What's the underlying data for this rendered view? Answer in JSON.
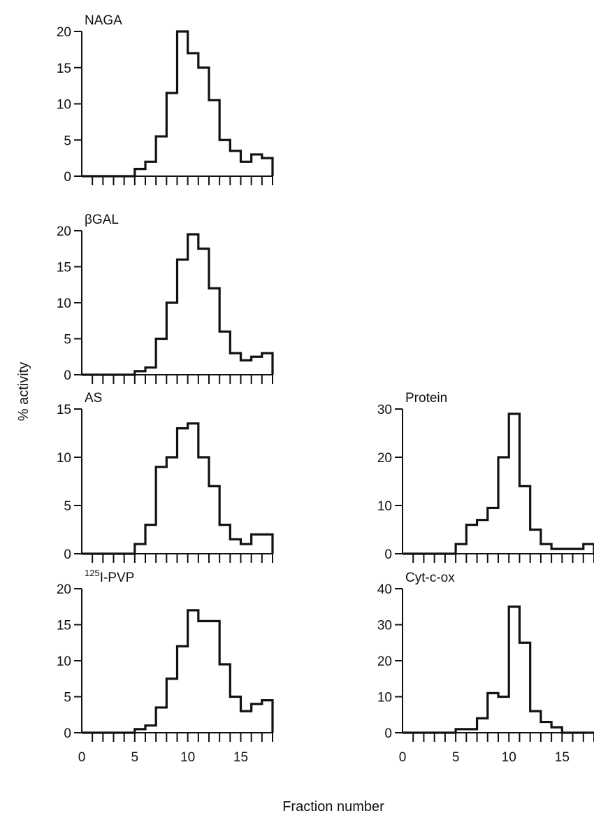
{
  "figure": {
    "ylabel": "% activity",
    "xlabel": "Fraction number"
  },
  "chart_data": [
    {
      "type": "line",
      "title": "NAGA",
      "x": [
        1,
        2,
        3,
        4,
        5,
        6,
        7,
        8,
        9,
        10,
        11,
        12,
        13,
        14,
        15,
        16,
        17,
        18
      ],
      "values": [
        0,
        0,
        0,
        0,
        0,
        1,
        2,
        5.5,
        11.5,
        20,
        17,
        15,
        10.5,
        5,
        3.5,
        2,
        3,
        2.5
      ],
      "ylim": [
        0,
        20
      ],
      "yticks": [
        0,
        5,
        10,
        15,
        20
      ],
      "xlim": [
        0,
        18
      ],
      "xtick_labels": []
    },
    {
      "type": "line",
      "title": "βGAL",
      "x": [
        1,
        2,
        3,
        4,
        5,
        6,
        7,
        8,
        9,
        10,
        11,
        12,
        13,
        14,
        15,
        16,
        17,
        18
      ],
      "values": [
        0,
        0,
        0,
        0,
        0,
        0.5,
        1,
        5,
        10,
        16,
        19.5,
        17.5,
        12,
        6,
        3,
        2,
        2.5,
        3
      ],
      "ylim": [
        0,
        20
      ],
      "yticks": [
        0,
        5,
        10,
        15,
        20
      ],
      "xlim": [
        0,
        18
      ],
      "xtick_labels": []
    },
    {
      "type": "line",
      "title": "AS",
      "x": [
        1,
        2,
        3,
        4,
        5,
        6,
        7,
        8,
        9,
        10,
        11,
        12,
        13,
        14,
        15,
        16,
        17,
        18
      ],
      "values": [
        0,
        0,
        0,
        0,
        0,
        1,
        3,
        9,
        10,
        13,
        13.5,
        10,
        7,
        3,
        1.5,
        1,
        2,
        2
      ],
      "ylim": [
        0,
        15
      ],
      "yticks": [
        0,
        5,
        10,
        15
      ],
      "xlim": [
        0,
        18
      ],
      "xtick_labels": []
    },
    {
      "type": "line",
      "title": "Protein",
      "x": [
        1,
        2,
        3,
        4,
        5,
        6,
        7,
        8,
        9,
        10,
        11,
        12,
        13,
        14,
        15,
        16,
        17,
        18
      ],
      "values": [
        0,
        0,
        0,
        0,
        0,
        2,
        6,
        7,
        9.5,
        20,
        29,
        14,
        5,
        2,
        1,
        1,
        1,
        2
      ],
      "ylim": [
        0,
        30
      ],
      "yticks": [
        0,
        10,
        20,
        30
      ],
      "xlim": [
        0,
        18
      ],
      "xtick_labels": []
    },
    {
      "type": "line",
      "title_sup": "125",
      "title": "I-PVP",
      "x": [
        1,
        2,
        3,
        4,
        5,
        6,
        7,
        8,
        9,
        10,
        11,
        12,
        13,
        14,
        15,
        16,
        17,
        18
      ],
      "values": [
        0,
        0,
        0,
        0,
        0,
        0.5,
        1,
        3.5,
        7.5,
        12,
        17,
        15.5,
        15.5,
        9.5,
        5,
        3,
        4,
        4.5
      ],
      "ylim": [
        0,
        20
      ],
      "yticks": [
        0,
        5,
        10,
        15,
        20
      ],
      "xlim": [
        0,
        18
      ],
      "xtick_labels": [
        "0",
        "5",
        "10",
        "15"
      ]
    },
    {
      "type": "line",
      "title": "Cyt-c-ox",
      "x": [
        1,
        2,
        3,
        4,
        5,
        6,
        7,
        8,
        9,
        10,
        11,
        12,
        13,
        14,
        15,
        16,
        17,
        18
      ],
      "values": [
        0,
        0,
        0,
        0,
        0,
        1,
        1,
        4,
        11,
        10,
        35,
        25,
        6,
        3,
        1.5,
        0,
        0,
        0
      ],
      "ylim": [
        0,
        40
      ],
      "yticks": [
        0,
        10,
        20,
        30,
        40
      ],
      "xlim": [
        0,
        18
      ],
      "xtick_labels": [
        "0",
        "5",
        "10",
        "15"
      ]
    }
  ]
}
